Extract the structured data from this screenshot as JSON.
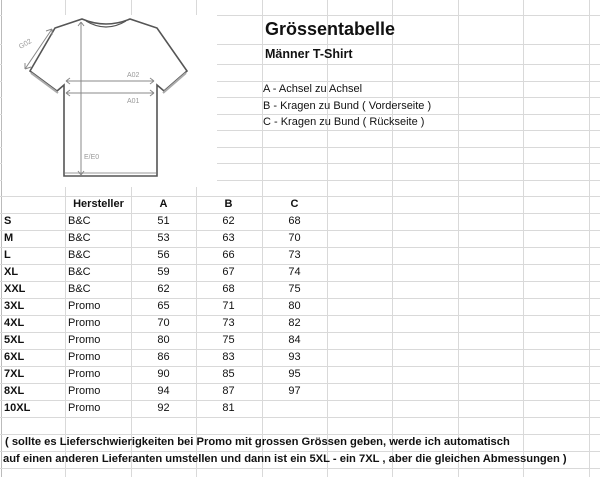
{
  "header": {
    "title": "Grössentabelle",
    "subtitle": "Männer T-Shirt"
  },
  "legend": [
    "A - Achsel zu Achsel",
    "B - Kragen zu Bund ( Vorderseite )",
    "C - Kragen zu Bund ( Rückseite )"
  ],
  "diagram": {
    "icon": "t-shirt-measurement-diagram",
    "labels": [
      "G02",
      "A02",
      "A01",
      "E/E0"
    ]
  },
  "table": {
    "columns": [
      "",
      "Hersteller",
      "A",
      "B",
      "C"
    ],
    "rows": [
      [
        "S",
        "B&C",
        "51",
        "62",
        "68"
      ],
      [
        "M",
        "B&C",
        "53",
        "63",
        "70"
      ],
      [
        "L",
        "B&C",
        "56",
        "66",
        "73"
      ],
      [
        "XL",
        "B&C",
        "59",
        "67",
        "74"
      ],
      [
        "XXL",
        "B&C",
        "62",
        "68",
        "75"
      ],
      [
        "3XL",
        "Promo",
        "65",
        "71",
        "80"
      ],
      [
        "4XL",
        "Promo",
        "70",
        "73",
        "82"
      ],
      [
        "5XL",
        "Promo",
        "80",
        "75",
        "84"
      ],
      [
        "6XL",
        "Promo",
        "86",
        "83",
        "93"
      ],
      [
        "7XL",
        "Promo",
        "90",
        "85",
        "95"
      ],
      [
        "8XL",
        "Promo",
        "94",
        "87",
        "97"
      ],
      [
        "10XL",
        "Promo",
        "92",
        "81",
        ""
      ]
    ]
  },
  "note": [
    " ( sollte es Lieferschwierigkeiten bei Promo mit grossen Grössen geben, werde ich automatisch",
    "auf einen anderen Lieferanten umstellen und dann ist ein 5XL - ein 7XL , aber die gleichen Abmessungen )"
  ]
}
